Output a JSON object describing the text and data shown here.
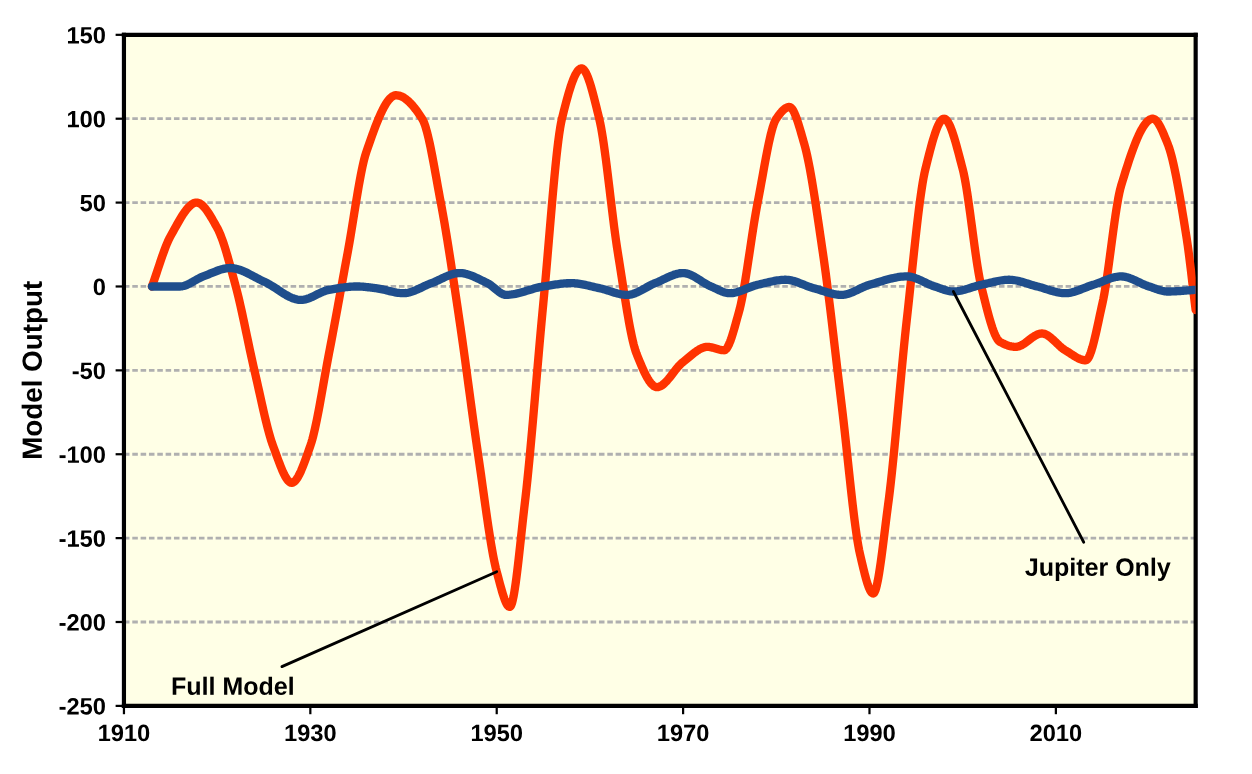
{
  "chart_data": {
    "type": "line",
    "ylabel": "Model Output",
    "xlim": [
      1910,
      2025
    ],
    "xticks": [
      1910,
      1930,
      1950,
      1970,
      1990,
      2010
    ],
    "ylim": [
      -250,
      150
    ],
    "yticks": [
      -250,
      -200,
      -150,
      -100,
      -50,
      0,
      50,
      100,
      150
    ],
    "grid": "y",
    "line_style": "solid",
    "marker": "none",
    "series": [
      {
        "color": "#ff3300",
        "x": [
          1913,
          1915,
          1917.8,
          1920,
          1922,
          1924,
          1926,
          1928,
          1930,
          1932,
          1934,
          1936,
          1939.2,
          1942,
          1944,
          1946,
          1948,
          1950,
          1951.4,
          1953,
          1955,
          1957,
          1959.1,
          1961,
          1963,
          1965,
          1967.2,
          1970,
          1972.6,
          1974.4,
          1976,
          1978,
          1980,
          1981.4,
          1983,
          1985,
          1987,
          1989,
          1990.4,
          1992,
          1994,
          1996,
          1998,
          2000,
          2002,
          2004,
          2005.7,
          2008.5,
          2011,
          2013.2,
          2015,
          2017,
          2020.4,
          2022,
          2024,
          2025
        ],
        "values": [
          0,
          30,
          50,
          35,
          0,
          -50,
          -95,
          -117,
          -95,
          -40,
          20,
          80,
          114,
          100,
          50,
          -20,
          -100,
          -170,
          -191,
          -130,
          -10,
          100,
          130,
          100,
          20,
          -40,
          -60,
          -45,
          -36,
          -38,
          -15,
          50,
          100,
          107,
          85,
          20,
          -70,
          -160,
          -183,
          -130,
          -20,
          70,
          100,
          70,
          0,
          -33,
          -36,
          -28,
          -38,
          -44,
          -10,
          60,
          100,
          85,
          30,
          -14
        ]
      },
      {
        "color": "#1f4e8c",
        "x": [
          1913,
          1916,
          1918.5,
          1921.4,
          1925,
          1929,
          1932,
          1935,
          1937,
          1940,
          1943,
          1946,
          1949,
          1951,
          1955,
          1958,
          1961,
          1964,
          1967,
          1970,
          1973,
          1975,
          1978,
          1981,
          1984,
          1987,
          1990,
          1994,
          1997,
          1999,
          2002,
          2005,
          2008,
          2011,
          2014,
          2017,
          2020,
          2022,
          2025
        ],
        "values": [
          0,
          0,
          6,
          11,
          3,
          -8,
          -2,
          0,
          -1,
          -4,
          2,
          8,
          2,
          -5,
          0,
          2,
          -1,
          -5,
          2,
          8,
          0,
          -4,
          1,
          4,
          -1,
          -5,
          1,
          6,
          0,
          -3,
          1,
          4,
          0,
          -4,
          1,
          6,
          0,
          -3,
          -2
        ]
      }
    ],
    "annotations": [
      {
        "text": "Full Model",
        "x": 1950,
        "y": -170
      },
      {
        "text": "Jupiter Only",
        "x": 1999,
        "y": -3
      }
    ]
  }
}
